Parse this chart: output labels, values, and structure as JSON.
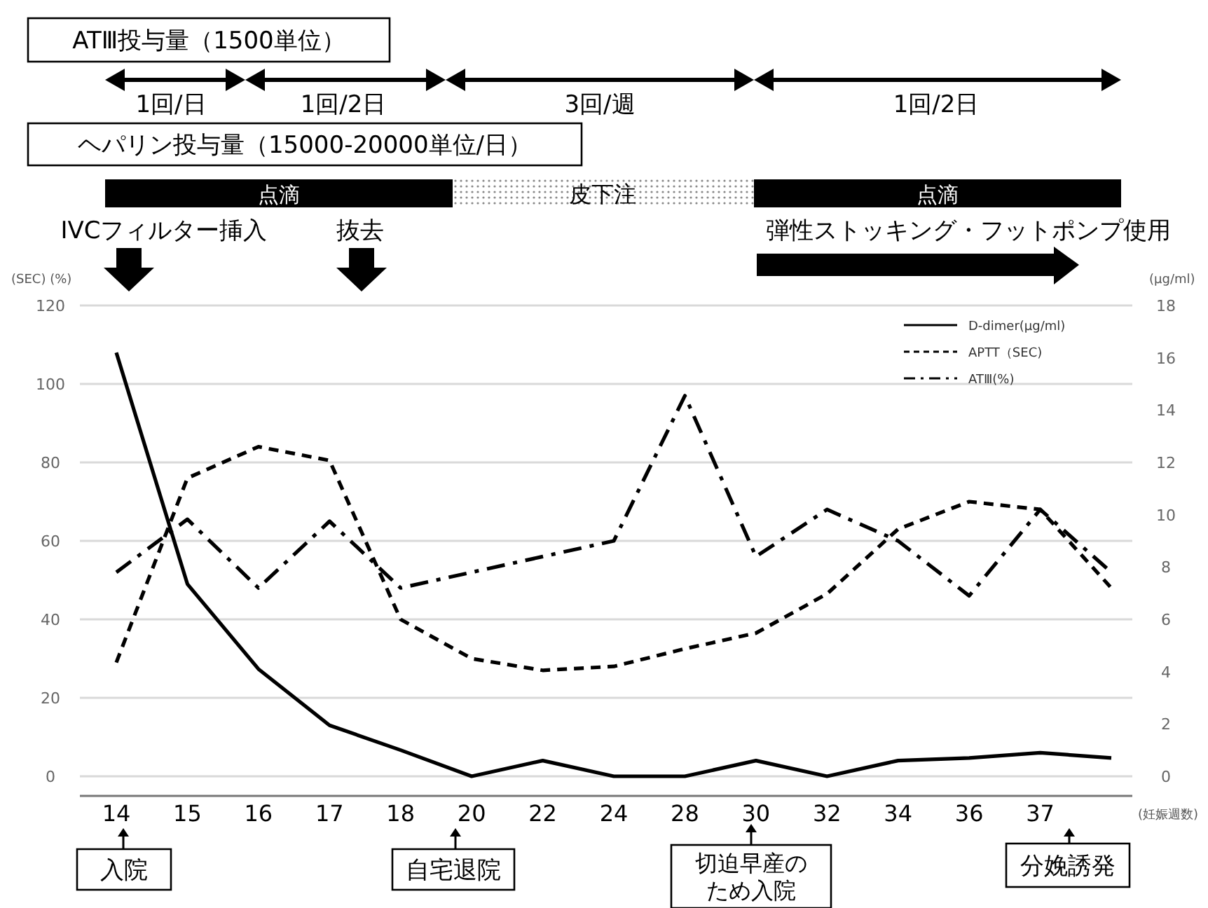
{
  "chart_data": {
    "type": "line",
    "categories": [
      "14",
      "15",
      "16",
      "17",
      "18",
      "20",
      "22",
      "24",
      "28",
      "30",
      "32",
      "34",
      "36",
      "37",
      null
    ],
    "xlabel": "(妊娠週数)",
    "ylabel": "(SEC) (%)",
    "y2label": "(μg/ml)",
    "ylim": [
      0,
      120
    ],
    "yticks": [
      0,
      20,
      40,
      60,
      80,
      100,
      120
    ],
    "y2lim": [
      0,
      18
    ],
    "y2ticks": [
      0,
      2,
      4,
      6,
      8,
      10,
      12,
      14,
      16,
      18
    ],
    "grid": "y",
    "legend": "top right",
    "marker": "none",
    "series": [
      {
        "name": "D-dimer(μg/ml)",
        "color": "#000000",
        "axis": "y2",
        "line_style": "solid",
        "values": [
          16.2,
          7.35,
          4.1,
          1.95,
          1.0,
          0,
          0.6,
          0,
          0,
          0.6,
          0,
          0.6,
          0.7,
          0.9,
          0.7
        ]
      },
      {
        "name": "APTT（SEC)",
        "color": "#000000",
        "line_style": "dashed",
        "values": [
          29,
          76,
          84,
          80.5,
          40,
          30,
          27,
          28,
          32.5,
          36.5,
          46.5,
          63,
          70,
          68,
          48
        ]
      },
      {
        "name": "ATⅢ(%)",
        "color": "#000000",
        "line_style": "dashdot",
        "values": [
          52,
          65.5,
          48,
          65,
          48,
          52,
          56,
          60,
          97,
          56,
          68,
          60,
          46,
          68,
          52
        ]
      }
    ],
    "annotations": [
      "ATⅢ投与量（1500単位）",
      "1回/日",
      "1回/2日",
      "3回/週",
      "1回/2日",
      "ヘパリン投与量（15000-20000単位/日）",
      "点滴",
      "皮下注",
      "点滴",
      "IVCフィルター挿入",
      "抜去",
      "弾性ストッキング・フットポンプ使用",
      "入院",
      "自宅退院",
      "切迫早産のため入院",
      "分娩誘発"
    ]
  }
}
